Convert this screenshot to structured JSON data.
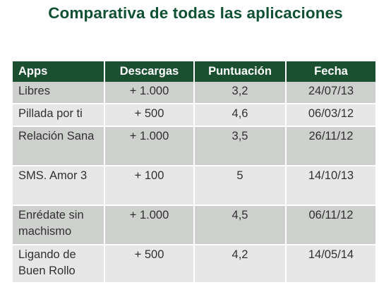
{
  "title": "Comparativa de todas las aplicaciones",
  "table": {
    "headers": [
      "Apps",
      "Descargas",
      "Puntuación",
      "Fecha"
    ],
    "rows": [
      [
        "Libres",
        "+ 1.000",
        "3,2",
        "24/07/13"
      ],
      [
        "Pillada por ti",
        "+ 500",
        "4,6",
        "06/03/12"
      ],
      [
        "Relación Sana",
        "+ 1.000",
        "3,5",
        "26/11/12"
      ],
      [
        "SMS. Amor 3",
        "+ 100",
        "5",
        "14/10/13"
      ],
      [
        "Enrédate sin machismo",
        "+ 1.000",
        "4,5",
        "06/11/12"
      ],
      [
        "Ligando de Buen Rollo",
        "+ 500",
        "4,2",
        "14/05/14"
      ]
    ]
  },
  "colors": {
    "title": "#0f5132",
    "header_bg": "#1a4f30",
    "row_odd": "#cdd0cd",
    "row_even": "#e6e7e6"
  }
}
